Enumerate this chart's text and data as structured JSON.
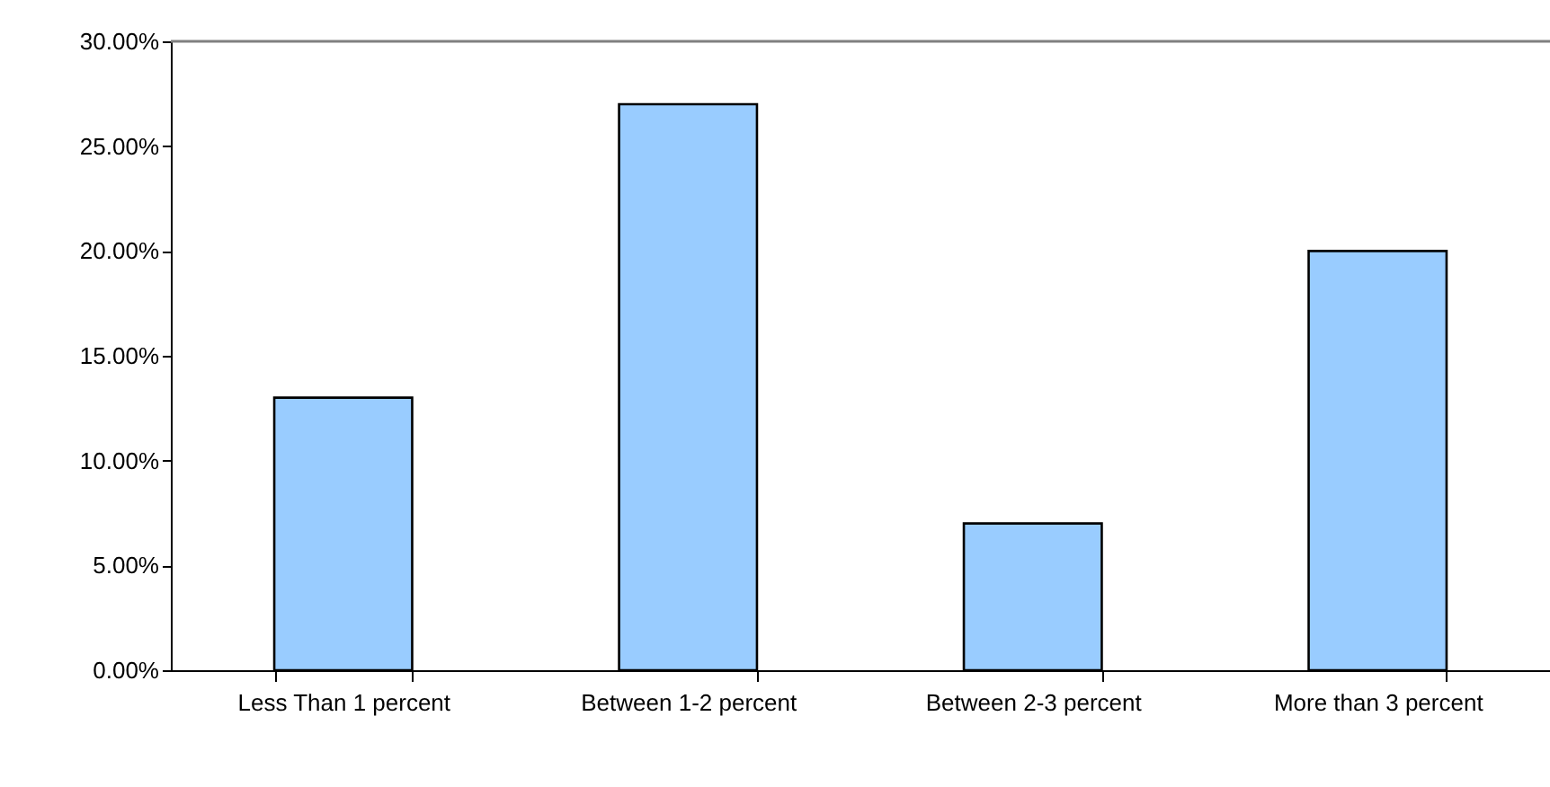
{
  "chart_data": {
    "type": "bar",
    "categories": [
      "Less Than 1 percent",
      "Between 1-2 percent",
      "Between 2-3 percent",
      "More than 3 percent"
    ],
    "values": [
      13,
      27,
      7,
      20
    ],
    "color": "#99ccff",
    "ylim": [
      0,
      30
    ],
    "yticks": [
      {
        "value": 0,
        "label": "0.00%"
      },
      {
        "value": 5,
        "label": "5.00%"
      },
      {
        "value": 10,
        "label": "10.00%"
      },
      {
        "value": 15,
        "label": "15.00%"
      },
      {
        "value": 20,
        "label": "20.00%"
      },
      {
        "value": 25,
        "label": "25.00%"
      },
      {
        "value": 30,
        "label": "30.00%"
      }
    ],
    "grid": false
  }
}
